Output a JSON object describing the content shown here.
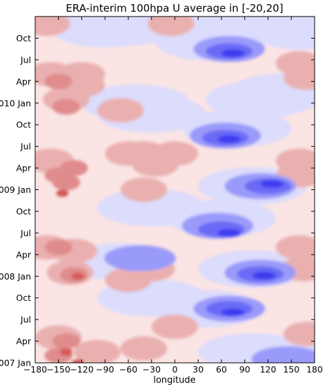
{
  "chart_data": {
    "type": "heatmap",
    "title": "ERA-interim 100hpa U average in [-20,20]",
    "xlabel": "longitude",
    "ylabel": "",
    "xlim": [
      -180,
      180
    ],
    "ylim": [
      "2007 Jan",
      "2010 Dec"
    ],
    "x_ticks": [
      -180,
      -150,
      -120,
      -90,
      -60,
      -30,
      0,
      30,
      60,
      90,
      120,
      150,
      180
    ],
    "y_ticks": [
      {
        "t": 0,
        "label": "2007 Jan"
      },
      {
        "t": 3,
        "label": "Apr"
      },
      {
        "t": 6,
        "label": "Jul"
      },
      {
        "t": 9,
        "label": "Oct"
      },
      {
        "t": 12,
        "label": "2008 Jan"
      },
      {
        "t": 15,
        "label": "Apr"
      },
      {
        "t": 18,
        "label": "Jul"
      },
      {
        "t": 21,
        "label": "Oct"
      },
      {
        "t": 24,
        "label": "2009 Jan"
      },
      {
        "t": 27,
        "label": "Apr"
      },
      {
        "t": 30,
        "label": "Jul"
      },
      {
        "t": 33,
        "label": "Oct"
      },
      {
        "t": 36,
        "label": "2010 Jan"
      },
      {
        "t": 39,
        "label": "Apr"
      },
      {
        "t": 42,
        "label": "Jul"
      },
      {
        "t": 45,
        "label": "Oct"
      }
    ],
    "colormap": "bwr",
    "colors": {
      "neg3": "#3c3cf0",
      "neg2": "#6a6af6",
      "neg1": "#9a9afa",
      "neg0": "#dcdcfc",
      "pos0": "#fbe4e4",
      "pos1": "#eab0b0",
      "pos2": "#e08c8c",
      "pos3": "#d45858"
    },
    "background_level": "pos0",
    "features": [
      {
        "lon": -90,
        "t": 46.3,
        "level": "neg0"
      },
      {
        "lon": -60,
        "t": 46.6,
        "level": "neg0"
      },
      {
        "lon": 30,
        "t": 46.5,
        "level": "neg0"
      },
      {
        "lon": 120,
        "t": 47,
        "level": "neg0"
      },
      {
        "lon": 165,
        "t": 46,
        "level": "neg0"
      },
      {
        "lon": -165,
        "t": 47,
        "level": "pos1"
      },
      {
        "lon": -5,
        "t": 47,
        "level": "pos1"
      },
      {
        "lon": 45,
        "t": 44.5,
        "level": "neg0"
      },
      {
        "lon": 70,
        "t": 43.5,
        "level": "neg1"
      },
      {
        "lon": 70,
        "t": 43.2,
        "level": "neg2"
      },
      {
        "lon": 75,
        "t": 42.9,
        "level": "neg3"
      },
      {
        "lon": -160,
        "t": 40,
        "level": "pos1"
      },
      {
        "lon": -150,
        "t": 39,
        "level": "pos2"
      },
      {
        "lon": -120,
        "t": 40,
        "level": "pos1"
      },
      {
        "lon": -120,
        "t": 38.5,
        "level": "pos1"
      },
      {
        "lon": -140,
        "t": 36.5,
        "level": "pos1"
      },
      {
        "lon": -140,
        "t": 35.5,
        "level": "pos2"
      },
      {
        "lon": -70,
        "t": 35,
        "level": "pos1"
      },
      {
        "lon": 170,
        "t": 39.5,
        "level": "pos1"
      },
      {
        "lon": 160,
        "t": 41.5,
        "level": "pos1"
      },
      {
        "lon": 110,
        "t": 36.5,
        "level": "neg0"
      },
      {
        "lon": 140,
        "t": 37.5,
        "level": "neg0"
      },
      {
        "lon": -50,
        "t": 36,
        "level": "neg0"
      },
      {
        "lon": -30,
        "t": 34.5,
        "level": "neg0"
      },
      {
        "lon": 80,
        "t": 32.5,
        "level": "neg0"
      },
      {
        "lon": 65,
        "t": 31.5,
        "level": "neg1"
      },
      {
        "lon": 65,
        "t": 31.2,
        "level": "neg2"
      },
      {
        "lon": 70,
        "t": 31,
        "level": "neg3"
      },
      {
        "lon": -160,
        "t": 28,
        "level": "pos1"
      },
      {
        "lon": -150,
        "t": 26,
        "level": "pos2"
      },
      {
        "lon": -140,
        "t": 25,
        "level": "pos2"
      },
      {
        "lon": -145,
        "t": 23.5,
        "level": "pos3"
      },
      {
        "lon": -130,
        "t": 27,
        "level": "pos2"
      },
      {
        "lon": -60,
        "t": 29,
        "level": "pos1"
      },
      {
        "lon": -40,
        "t": 29,
        "level": "pos1"
      },
      {
        "lon": -25,
        "t": 27.5,
        "level": "pos1"
      },
      {
        "lon": 0,
        "t": 29,
        "level": "pos1"
      },
      {
        "lon": -40,
        "t": 24,
        "level": "pos1"
      },
      {
        "lon": 160,
        "t": 28,
        "level": "pos1"
      },
      {
        "lon": 160,
        "t": 26,
        "level": "pos1"
      },
      {
        "lon": 100,
        "t": 24.5,
        "level": "neg0"
      },
      {
        "lon": 110,
        "t": 24.5,
        "level": "neg1"
      },
      {
        "lon": 120,
        "t": 24.5,
        "level": "neg2"
      },
      {
        "lon": 125,
        "t": 24.8,
        "level": "neg3"
      },
      {
        "lon": -30,
        "t": 21.5,
        "level": "neg0"
      },
      {
        "lon": 60,
        "t": 20,
        "level": "neg0"
      },
      {
        "lon": 55,
        "t": 19,
        "level": "neg1"
      },
      {
        "lon": 60,
        "t": 18.5,
        "level": "neg2"
      },
      {
        "lon": 70,
        "t": 18,
        "level": "neg3"
      },
      {
        "lon": -165,
        "t": 16,
        "level": "pos1"
      },
      {
        "lon": -150,
        "t": 16,
        "level": "pos2"
      },
      {
        "lon": -130,
        "t": 15.5,
        "level": "pos1"
      },
      {
        "lon": -135,
        "t": 12.5,
        "level": "pos1"
      },
      {
        "lon": -130,
        "t": 12.2,
        "level": "pos2"
      },
      {
        "lon": -125,
        "t": 12,
        "level": "pos3"
      },
      {
        "lon": -30,
        "t": 13,
        "level": "pos1"
      },
      {
        "lon": -60,
        "t": 11.5,
        "level": "pos1"
      },
      {
        "lon": 160,
        "t": 16,
        "level": "pos1"
      },
      {
        "lon": 165,
        "t": 13,
        "level": "pos1"
      },
      {
        "lon": -70,
        "t": 14,
        "level": "neg0"
      },
      {
        "lon": -45,
        "t": 14.5,
        "level": "neg1"
      },
      {
        "lon": 100,
        "t": 13,
        "level": "neg0"
      },
      {
        "lon": 110,
        "t": 12.5,
        "level": "neg1"
      },
      {
        "lon": 110,
        "t": 12.3,
        "level": "neg2"
      },
      {
        "lon": 115,
        "t": 12.1,
        "level": "neg3"
      },
      {
        "lon": -30,
        "t": 9,
        "level": "neg0"
      },
      {
        "lon": 40,
        "t": 7.5,
        "level": "neg0"
      },
      {
        "lon": 70,
        "t": 7.5,
        "level": "neg1"
      },
      {
        "lon": 70,
        "t": 7.5,
        "level": "neg2"
      },
      {
        "lon": 75,
        "t": 7,
        "level": "neg3"
      },
      {
        "lon": -150,
        "t": 3.5,
        "level": "pos1"
      },
      {
        "lon": -140,
        "t": 3,
        "level": "pos2"
      },
      {
        "lon": -150,
        "t": 1,
        "level": "pos2"
      },
      {
        "lon": -140,
        "t": 1.5,
        "level": "pos3"
      },
      {
        "lon": -125,
        "t": 0,
        "level": "pos3"
      },
      {
        "lon": -100,
        "t": 1.5,
        "level": "pos1"
      },
      {
        "lon": -40,
        "t": 2,
        "level": "pos1"
      },
      {
        "lon": 0,
        "t": 5,
        "level": "pos1"
      },
      {
        "lon": 170,
        "t": 4,
        "level": "pos1"
      },
      {
        "lon": 100,
        "t": 1.5,
        "level": "neg0"
      },
      {
        "lon": 140,
        "t": 1,
        "level": "neg0"
      },
      {
        "lon": 145,
        "t": 0.5,
        "level": "neg1"
      }
    ]
  }
}
